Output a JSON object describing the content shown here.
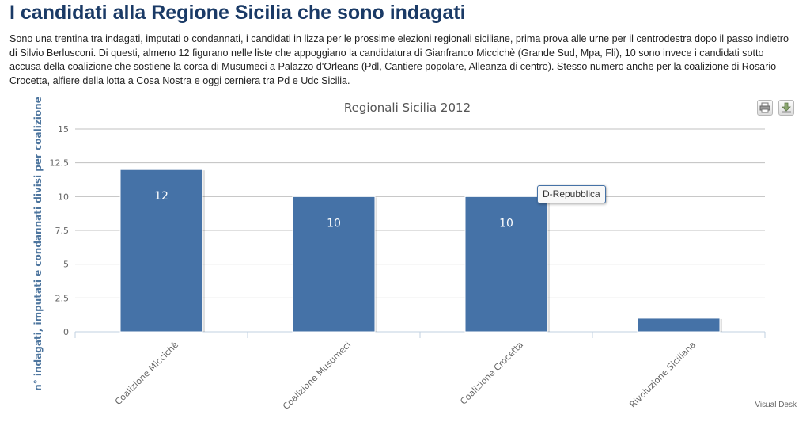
{
  "page": {
    "headline": "I candidati alla Regione Sicilia che sono indagati",
    "intro": "Sono una trentina tra indagati, imputati o condannati, i candidati in lizza per le prossime elezioni regionali siciliane, prima prova alle urne per il centrodestra dopo il passo indietro di Silvio Berlusconi. Di questi, almeno 12 figurano nelle liste che appoggiano la candidatura di Gianfranco Miccichè (Grande Sud, Mpa, Fli), 10 sono invece i candidati sotto accusa della coalizione che sostiene la corsa di Musumeci a Palazzo d'Orleans (Pdl, Cantiere popolare, Alleanza di centro). Stesso numero anche per la coalizione di Rosario Crocetta, alfiere della lotta a Cosa Nostra e oggi cerniera tra Pd e Udc Sicilia."
  },
  "toolbar": {
    "print_icon": "printer-icon",
    "export_icon": "download-icon"
  },
  "tooltip": {
    "text": "D-Repubblica"
  },
  "credit": {
    "text": "Visual Desk"
  },
  "colors": {
    "bar": "#4572a7",
    "headline": "#1a3a66",
    "ylabel": "#4d759e",
    "grid": "#c0c0c0",
    "axis_label": "#666666"
  },
  "chart_data": {
    "type": "bar",
    "title": "Regionali Sicilia 2012",
    "xlabel": "",
    "ylabel": "n° indagati, imputati e condannati divisi per coalizione",
    "categories": [
      "Coalizione Miccichè",
      "Coalizione Musumeci",
      "Coalizione Crocetta",
      "Rivoluzione Siciliana"
    ],
    "series": [
      {
        "values": [
          12,
          10,
          10,
          1
        ]
      }
    ],
    "data_labels": [
      "12",
      "10",
      "10",
      ""
    ],
    "yticks": [
      "0",
      "2.5",
      "5",
      "7.5",
      "10",
      "12.5",
      "15"
    ],
    "ylim": [
      0,
      15
    ],
    "grid": true,
    "legend": "none"
  }
}
